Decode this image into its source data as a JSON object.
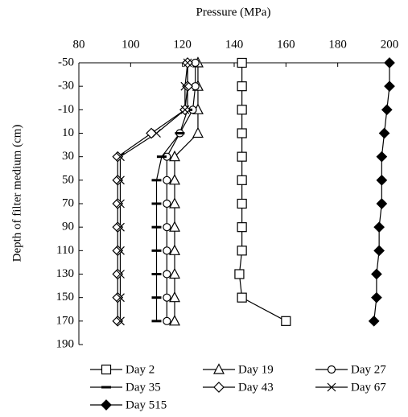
{
  "chart_data": {
    "type": "line",
    "x_label": "Pressure (MPa)",
    "y_label": "Depth of filter medium (cm)",
    "y": [
      -50,
      -30,
      -10,
      10,
      30,
      50,
      70,
      90,
      110,
      130,
      150,
      170
    ],
    "xlim": [
      80,
      200
    ],
    "xticks": [
      80,
      100,
      120,
      140,
      160,
      180,
      200
    ],
    "ylim": [
      -50,
      190
    ],
    "yticks": [
      -50,
      -30,
      -10,
      10,
      30,
      50,
      70,
      90,
      110,
      130,
      150,
      170,
      190
    ],
    "inverted_y": true,
    "series": [
      {
        "name": "Day 2",
        "color": "#000000",
        "marker": "square",
        "values": [
          143,
          143,
          143,
          143,
          143,
          143,
          143,
          143,
          143,
          142,
          143,
          160
        ]
      },
      {
        "name": "Day 19",
        "color": "#000000",
        "marker": "triangle",
        "values": [
          126,
          126,
          126,
          126,
          117,
          117,
          117,
          117,
          117,
          117,
          117,
          117
        ]
      },
      {
        "name": "Day 27",
        "color": "#000000",
        "marker": "circle",
        "values": [
          125,
          125,
          124,
          119,
          114,
          114,
          114,
          114,
          114,
          114,
          114,
          114
        ]
      },
      {
        "name": "Day 35",
        "color": "#000000",
        "marker": "dash",
        "values": [
          122,
          122,
          122,
          119,
          112,
          110,
          110,
          110,
          110,
          110,
          110,
          110
        ]
      },
      {
        "name": "Day 43",
        "color": "#000000",
        "marker": "diamond",
        "values": [
          122,
          122,
          121,
          108,
          95,
          95,
          95,
          95,
          95,
          95,
          95,
          95
        ]
      },
      {
        "name": "Day 67",
        "color": "#000000",
        "marker": "x",
        "values": [
          122,
          121,
          121,
          110,
          96,
          96,
          96,
          96,
          96,
          96,
          96,
          96
        ]
      },
      {
        "name": "Day 515",
        "color": "#000000",
        "marker": "filled-diamond",
        "values": [
          200,
          200,
          199,
          198,
          197,
          197,
          197,
          196,
          196,
          195,
          195,
          194
        ]
      }
    ]
  }
}
